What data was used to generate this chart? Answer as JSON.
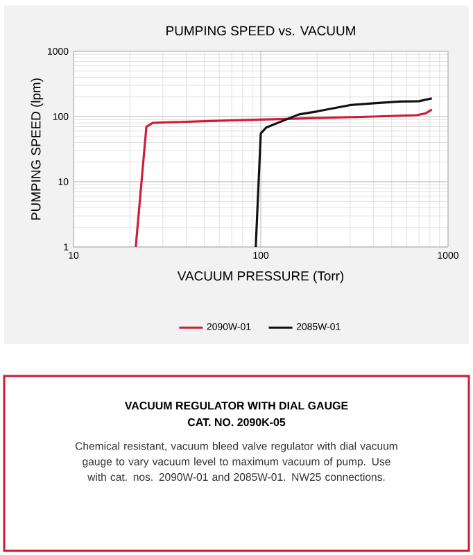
{
  "chart_data": {
    "type": "line",
    "title": "PUMPING SPEED vs. VACUUM",
    "xlabel": "VACUUM PRESSURE (Torr)",
    "ylabel": "PUMPING SPEED (lpm)",
    "log": "xy",
    "grid": true,
    "legend": "bottom",
    "xlim": [
      10,
      1000
    ],
    "ylim": [
      1,
      1000
    ],
    "xticks": [
      10,
      100,
      1000
    ],
    "yticks": [
      1,
      10,
      100,
      1000
    ],
    "series": [
      {
        "name": "2090W-01",
        "color": "#d01c3a",
        "x": [
          21.5,
          24.5,
          26.5,
          50,
          100,
          200,
          400,
          680,
          760,
          820
        ],
        "values": [
          1,
          70,
          80,
          85,
          90,
          95,
          100,
          105,
          112,
          128
        ]
      },
      {
        "name": "2085W-01",
        "color": "#111111",
        "x": [
          94,
          100,
          107,
          130,
          160,
          200,
          300,
          400,
          550,
          700,
          820
        ],
        "values": [
          1,
          55,
          68,
          85,
          108,
          120,
          150,
          160,
          170,
          172,
          190
        ]
      }
    ],
    "annotations": [
      "VACUUM REGULATOR WITH DIAL GAUGE",
      "CAT. NO. 2090K-05",
      "Chemical resistant, vacuum bleed valve regulator with dial vacuum gauge to vary vacuum level to maximum vacuum of pump. Use with cat. nos. 2090W-01 and 2085W-01. NW25 connections."
    ]
  }
}
